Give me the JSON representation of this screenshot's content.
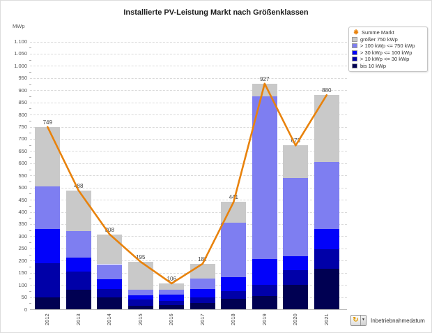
{
  "chart_data": {
    "type": "bar",
    "subtype": "stacked-bars-with-total-line",
    "title": "Installierte PV-Leistung Markt nach Größenklassen",
    "ylabel": "MWp",
    "xlabel": "",
    "categories": [
      "2012",
      "2013",
      "2014",
      "2015",
      "2016",
      "2017",
      "2018",
      "2019",
      "2020",
      "2021"
    ],
    "ylim": [
      0,
      1100
    ],
    "ytick_step": 50,
    "ytick_labels": [
      "1.100",
      "1.050",
      "1.000",
      "950",
      "900",
      "850",
      "800",
      "750",
      "700",
      "650",
      "600",
      "550",
      "500",
      "450",
      "400",
      "350",
      "300",
      "250",
      "200",
      "150",
      "100",
      "50",
      "0"
    ],
    "grid": "horizontal-dashed",
    "legend_position": "top-right",
    "series": [
      {
        "name": "bis 10 kWp",
        "color": "#000052",
        "values": [
          50,
          80,
          50,
          15,
          17,
          27,
          44,
          55,
          100,
          165
        ]
      },
      {
        "name": "> 10 kWp <= 30 kWp",
        "color": "#0000a8",
        "values": [
          140,
          75,
          32,
          26,
          18,
          22,
          31,
          45,
          60,
          82
        ]
      },
      {
        "name": "> 30 kWp <= 100 kWp",
        "color": "#0202fa",
        "values": [
          140,
          58,
          40,
          17,
          26,
          33,
          57,
          107,
          58,
          83
        ]
      },
      {
        "name": "> 100 kWp <= 750 kWp",
        "color": "#7e7ef1",
        "values": [
          175,
          107,
          63,
          23,
          19,
          43,
          223,
          668,
          322,
          275
        ]
      },
      {
        "name": "größer 750 kWp",
        "color": "#c9c9c9",
        "values": [
          244,
          168,
          123,
          114,
          26,
          62,
          86,
          52,
          133,
          275
        ]
      }
    ],
    "line_series": {
      "name": "Summe Markt",
      "color": "#e8820c",
      "values": [
        749,
        488,
        308,
        195,
        106,
        187,
        441,
        927,
        673,
        880
      ]
    },
    "point_labels": [
      "749",
      "488",
      "308",
      "195",
      "106",
      "187",
      "441",
      "927",
      "673",
      "880"
    ]
  },
  "footer": {
    "control_label": "Inbetriebnahmedatum",
    "control_icon": "field-selector",
    "glyph": "↻",
    "arrow": "▼"
  }
}
